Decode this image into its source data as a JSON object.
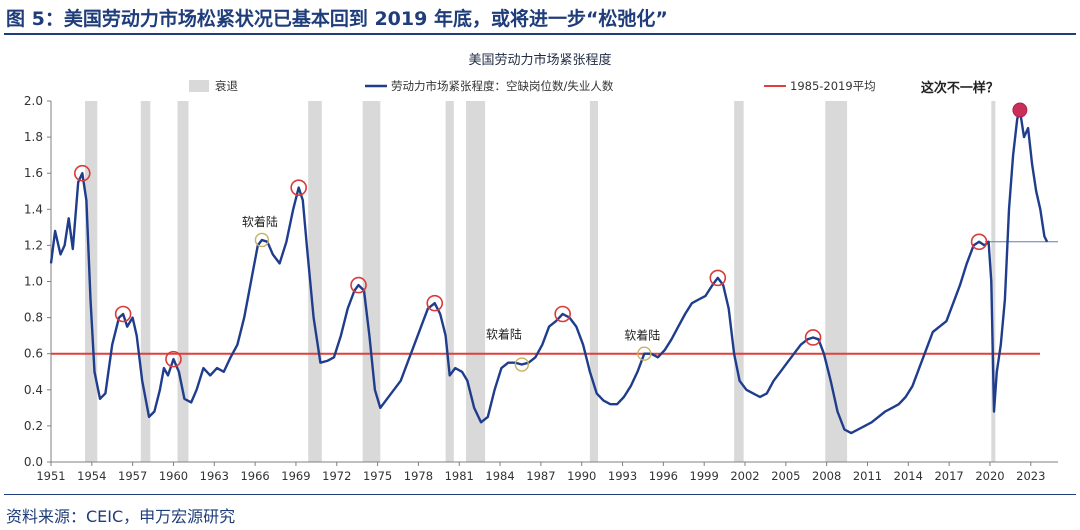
{
  "figure_title": "图 5：美国劳动力市场松紧状况已基本回到 2019 年底，或将进一步“松弛化”",
  "source": "资料来源：CEIC，申万宏源研究",
  "colors": {
    "series": "#1f3d8c",
    "average": "#e0403c",
    "recession": "#d9d9d9",
    "marker": "#d93a3a",
    "marker_soft": "#c8b060",
    "title": "#1f3d7a"
  },
  "chart_data": {
    "type": "line",
    "title": "美国劳动力市场紧张程度",
    "legend": {
      "placement": "top",
      "items": [
        {
          "label": "衰退",
          "kind": "recession-band"
        },
        {
          "label": "劳动力市场紧张程度：空缺岗位数/失业人数",
          "kind": "line"
        },
        {
          "label": "1985-2019平均",
          "kind": "average-line"
        }
      ]
    },
    "ylim": [
      0,
      2.0
    ],
    "yticks": [
      "0.0",
      "0.2",
      "0.4",
      "0.6",
      "0.8",
      "1.0",
      "1.2",
      "1.4",
      "1.6",
      "1.8",
      "2.0"
    ],
    "xlim": [
      1951,
      2025
    ],
    "xticks": [
      "1951",
      "1954",
      "1957",
      "1960",
      "1963",
      "1966",
      "1969",
      "1972",
      "1975",
      "1978",
      "1981",
      "1984",
      "1987",
      "1990",
      "1993",
      "1996",
      "1999",
      "2002",
      "2005",
      "2008",
      "2011",
      "2014",
      "2017",
      "2020",
      "2023"
    ],
    "grid": false,
    "average": {
      "label": "1985-2019平均",
      "value": 0.6
    },
    "recessions": [
      [
        1953.5,
        1954.4
      ],
      [
        1957.6,
        1958.3
      ],
      [
        1960.3,
        1961.1
      ],
      [
        1969.9,
        1970.9
      ],
      [
        1973.9,
        1975.2
      ],
      [
        1980.0,
        1980.6
      ],
      [
        1981.5,
        1982.9
      ],
      [
        1990.6,
        1991.2
      ],
      [
        2001.2,
        2001.9
      ],
      [
        2007.9,
        2009.5
      ],
      [
        2020.1,
        2020.4
      ]
    ],
    "series": [
      {
        "name": "劳动力市场紧张程度：空缺岗位数/失业人数",
        "points": [
          [
            1951.0,
            1.1
          ],
          [
            1951.3,
            1.28
          ],
          [
            1951.7,
            1.15
          ],
          [
            1952.0,
            1.2
          ],
          [
            1952.3,
            1.35
          ],
          [
            1952.6,
            1.18
          ],
          [
            1953.0,
            1.55
          ],
          [
            1953.3,
            1.6
          ],
          [
            1953.6,
            1.45
          ],
          [
            1953.9,
            0.9
          ],
          [
            1954.2,
            0.5
          ],
          [
            1954.6,
            0.35
          ],
          [
            1955.0,
            0.38
          ],
          [
            1955.5,
            0.65
          ],
          [
            1956.0,
            0.8
          ],
          [
            1956.3,
            0.82
          ],
          [
            1956.6,
            0.75
          ],
          [
            1957.0,
            0.8
          ],
          [
            1957.3,
            0.7
          ],
          [
            1957.7,
            0.45
          ],
          [
            1958.2,
            0.25
          ],
          [
            1958.6,
            0.28
          ],
          [
            1959.0,
            0.4
          ],
          [
            1959.3,
            0.52
          ],
          [
            1959.6,
            0.48
          ],
          [
            1960.0,
            0.57
          ],
          [
            1960.4,
            0.5
          ],
          [
            1960.8,
            0.35
          ],
          [
            1961.3,
            0.33
          ],
          [
            1961.7,
            0.4
          ],
          [
            1962.2,
            0.52
          ],
          [
            1962.7,
            0.48
          ],
          [
            1963.2,
            0.52
          ],
          [
            1963.7,
            0.5
          ],
          [
            1964.2,
            0.58
          ],
          [
            1964.7,
            0.65
          ],
          [
            1965.2,
            0.8
          ],
          [
            1965.7,
            1.0
          ],
          [
            1966.2,
            1.2
          ],
          [
            1966.5,
            1.23
          ],
          [
            1966.9,
            1.22
          ],
          [
            1967.3,
            1.15
          ],
          [
            1967.8,
            1.1
          ],
          [
            1968.3,
            1.22
          ],
          [
            1968.8,
            1.4
          ],
          [
            1969.2,
            1.52
          ],
          [
            1969.5,
            1.45
          ],
          [
            1969.8,
            1.2
          ],
          [
            1970.3,
            0.8
          ],
          [
            1970.8,
            0.55
          ],
          [
            1971.3,
            0.56
          ],
          [
            1971.8,
            0.58
          ],
          [
            1972.3,
            0.7
          ],
          [
            1972.8,
            0.85
          ],
          [
            1973.3,
            0.95
          ],
          [
            1973.6,
            0.98
          ],
          [
            1974.0,
            0.95
          ],
          [
            1974.4,
            0.7
          ],
          [
            1974.8,
            0.4
          ],
          [
            1975.2,
            0.3
          ],
          [
            1975.7,
            0.35
          ],
          [
            1976.2,
            0.4
          ],
          [
            1976.7,
            0.45
          ],
          [
            1977.2,
            0.55
          ],
          [
            1977.7,
            0.65
          ],
          [
            1978.2,
            0.75
          ],
          [
            1978.7,
            0.85
          ],
          [
            1979.2,
            0.88
          ],
          [
            1979.6,
            0.82
          ],
          [
            1980.0,
            0.7
          ],
          [
            1980.3,
            0.48
          ],
          [
            1980.7,
            0.52
          ],
          [
            1981.2,
            0.5
          ],
          [
            1981.6,
            0.45
          ],
          [
            1982.1,
            0.3
          ],
          [
            1982.6,
            0.22
          ],
          [
            1983.1,
            0.25
          ],
          [
            1983.6,
            0.4
          ],
          [
            1984.1,
            0.52
          ],
          [
            1984.6,
            0.55
          ],
          [
            1985.1,
            0.55
          ],
          [
            1985.6,
            0.54
          ],
          [
            1986.1,
            0.55
          ],
          [
            1986.6,
            0.58
          ],
          [
            1987.1,
            0.65
          ],
          [
            1987.6,
            0.75
          ],
          [
            1988.1,
            0.78
          ],
          [
            1988.6,
            0.82
          ],
          [
            1989.1,
            0.8
          ],
          [
            1989.6,
            0.75
          ],
          [
            1990.1,
            0.65
          ],
          [
            1990.6,
            0.5
          ],
          [
            1991.1,
            0.38
          ],
          [
            1991.6,
            0.34
          ],
          [
            1992.1,
            0.32
          ],
          [
            1992.6,
            0.32
          ],
          [
            1993.1,
            0.36
          ],
          [
            1993.6,
            0.42
          ],
          [
            1994.1,
            0.5
          ],
          [
            1994.6,
            0.6
          ],
          [
            1995.1,
            0.6
          ],
          [
            1995.6,
            0.58
          ],
          [
            1996.1,
            0.62
          ],
          [
            1996.6,
            0.68
          ],
          [
            1997.1,
            0.75
          ],
          [
            1997.6,
            0.82
          ],
          [
            1998.1,
            0.88
          ],
          [
            1998.6,
            0.9
          ],
          [
            1999.1,
            0.92
          ],
          [
            1999.6,
            0.98
          ],
          [
            2000.0,
            1.02
          ],
          [
            2000.4,
            0.98
          ],
          [
            2000.8,
            0.85
          ],
          [
            2001.2,
            0.6
          ],
          [
            2001.6,
            0.45
          ],
          [
            2002.1,
            0.4
          ],
          [
            2002.6,
            0.38
          ],
          [
            2003.1,
            0.36
          ],
          [
            2003.6,
            0.38
          ],
          [
            2004.1,
            0.45
          ],
          [
            2004.6,
            0.5
          ],
          [
            2005.1,
            0.55
          ],
          [
            2005.6,
            0.6
          ],
          [
            2006.1,
            0.65
          ],
          [
            2006.6,
            0.68
          ],
          [
            2007.0,
            0.69
          ],
          [
            2007.4,
            0.68
          ],
          [
            2007.8,
            0.6
          ],
          [
            2008.3,
            0.45
          ],
          [
            2008.8,
            0.28
          ],
          [
            2009.3,
            0.18
          ],
          [
            2009.8,
            0.16
          ],
          [
            2010.3,
            0.18
          ],
          [
            2010.8,
            0.2
          ],
          [
            2011.3,
            0.22
          ],
          [
            2011.8,
            0.25
          ],
          [
            2012.3,
            0.28
          ],
          [
            2012.8,
            0.3
          ],
          [
            2013.3,
            0.32
          ],
          [
            2013.8,
            0.36
          ],
          [
            2014.3,
            0.42
          ],
          [
            2014.8,
            0.52
          ],
          [
            2015.3,
            0.62
          ],
          [
            2015.8,
            0.72
          ],
          [
            2016.3,
            0.75
          ],
          [
            2016.8,
            0.78
          ],
          [
            2017.3,
            0.88
          ],
          [
            2017.8,
            0.98
          ],
          [
            2018.3,
            1.1
          ],
          [
            2018.8,
            1.2
          ],
          [
            2019.2,
            1.22
          ],
          [
            2019.6,
            1.2
          ],
          [
            2019.9,
            1.22
          ],
          [
            2020.1,
            1.0
          ],
          [
            2020.3,
            0.28
          ],
          [
            2020.5,
            0.5
          ],
          [
            2020.8,
            0.65
          ],
          [
            2021.1,
            0.9
          ],
          [
            2021.4,
            1.4
          ],
          [
            2021.7,
            1.7
          ],
          [
            2022.0,
            1.9
          ],
          [
            2022.2,
            1.95
          ],
          [
            2022.5,
            1.8
          ],
          [
            2022.8,
            1.85
          ],
          [
            2023.1,
            1.65
          ],
          [
            2023.4,
            1.5
          ],
          [
            2023.7,
            1.4
          ],
          [
            2024.0,
            1.25
          ],
          [
            2024.2,
            1.22
          ]
        ]
      }
    ],
    "peak_markers": [
      [
        1953.3,
        1.6
      ],
      [
        1956.3,
        0.82
      ],
      [
        1960.0,
        0.57
      ],
      [
        1969.2,
        1.52
      ],
      [
        1973.6,
        0.98
      ],
      [
        1979.2,
        0.88
      ],
      [
        1988.6,
        0.82
      ],
      [
        2000.0,
        1.02
      ],
      [
        2007.0,
        0.69
      ],
      [
        2019.2,
        1.22
      ]
    ],
    "soft_landing_markers": [
      [
        1966.5,
        1.23
      ],
      [
        1985.6,
        0.54
      ],
      [
        1994.6,
        0.6
      ]
    ],
    "current_marker": [
      2022.2,
      1.95
    ],
    "current_level": 1.22,
    "annotations": [
      {
        "text": "软着陆",
        "x": 1966.5,
        "y": 1.23
      },
      {
        "text": "软着陆",
        "x": 1985.6,
        "y": 0.54
      },
      {
        "text": "软着陆",
        "x": 1994.6,
        "y": 0.6
      },
      {
        "text": "这次不一样？",
        "x": 2022.2,
        "y": 1.95
      }
    ]
  }
}
